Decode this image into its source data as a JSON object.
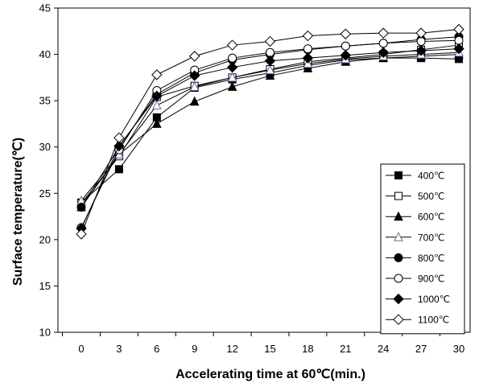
{
  "chart_data": {
    "type": "line",
    "title": "",
    "xlabel": "Accelerating time at 60℃(min.)",
    "ylabel": "Surface temperature(℃)",
    "x": [
      0,
      3,
      6,
      9,
      12,
      15,
      18,
      21,
      24,
      27,
      30
    ],
    "x_tick_labels": [
      "0",
      "3",
      "6",
      "9",
      "12",
      "15",
      "18",
      "21",
      "24",
      "27",
      "30"
    ],
    "ylim": [
      10,
      45
    ],
    "y_ticks": [
      10,
      15,
      20,
      25,
      30,
      35,
      40,
      45
    ],
    "grid": false,
    "legend_position": "right",
    "series": [
      {
        "name": "400℃",
        "marker": "square-filled",
        "values": [
          24.0,
          27.6,
          33.2,
          36.4,
          37.3,
          38.0,
          38.8,
          39.4,
          39.6,
          39.6,
          39.5
        ]
      },
      {
        "name": "500℃",
        "marker": "square-open",
        "values": [
          23.9,
          29.0,
          35.4,
          36.6,
          37.5,
          38.4,
          39.2,
          39.6,
          40.0,
          40.5,
          41.0
        ]
      },
      {
        "name": "600℃",
        "marker": "triangle-filled",
        "values": [
          23.5,
          29.2,
          32.5,
          34.9,
          36.5,
          37.7,
          38.5,
          39.2,
          39.6,
          39.8,
          40.0
        ]
      },
      {
        "name": "700℃",
        "marker": "triangle-open",
        "values": [
          24.2,
          29.2,
          34.5,
          36.5,
          37.5,
          38.3,
          39.0,
          39.5,
          39.8,
          40.0,
          40.2
        ]
      },
      {
        "name": "800℃",
        "marker": "circle-filled",
        "values": [
          23.5,
          30.0,
          35.7,
          38.0,
          39.4,
          40.0,
          40.5,
          40.9,
          41.2,
          41.6,
          41.9
        ]
      },
      {
        "name": "900℃",
        "marker": "circle-open",
        "values": [
          21.3,
          29.7,
          36.1,
          38.3,
          39.6,
          40.2,
          40.6,
          40.9,
          41.2,
          41.4,
          41.5
        ]
      },
      {
        "name": "1000℃",
        "marker": "diamond-filled",
        "values": [
          21.2,
          30.1,
          35.5,
          37.7,
          38.6,
          39.3,
          39.6,
          39.9,
          40.2,
          40.4,
          40.6
        ]
      },
      {
        "name": "1100℃",
        "marker": "diamond-open",
        "values": [
          20.6,
          31.0,
          37.8,
          39.8,
          41.0,
          41.4,
          42.0,
          42.2,
          42.3,
          42.3,
          42.7
        ]
      }
    ]
  }
}
